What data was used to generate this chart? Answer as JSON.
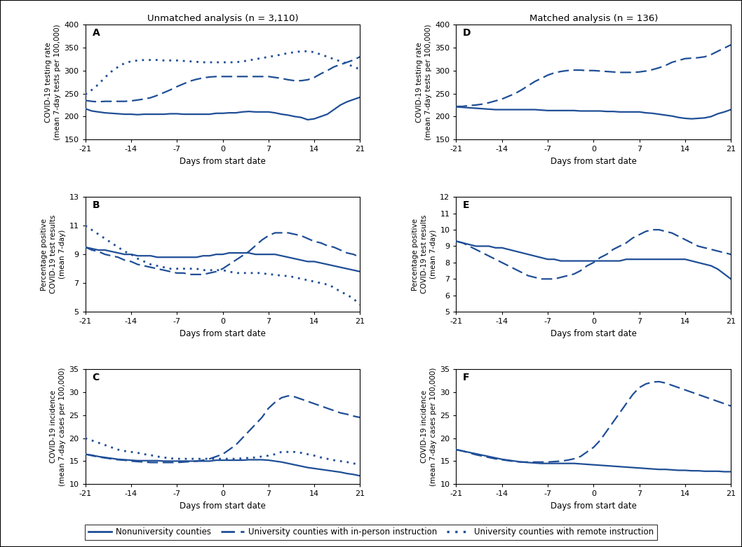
{
  "title_left": "Unmatched analysis (n = 3,110)",
  "title_right": "Matched analysis (n = 136)",
  "color": "#1F4E96",
  "x": [
    -21,
    -20,
    -19,
    -18,
    -17,
    -16,
    -15,
    -14,
    -13,
    -12,
    -11,
    -10,
    -9,
    -8,
    -7,
    -6,
    -5,
    -4,
    -3,
    -2,
    -1,
    0,
    1,
    2,
    3,
    4,
    5,
    6,
    7,
    8,
    9,
    10,
    11,
    12,
    13,
    14,
    15,
    16,
    17,
    18,
    19,
    20,
    21
  ],
  "panels": {
    "A": {
      "col_title": "Unmatched analysis (n = 3,110)",
      "ylabel": "COVID-19 testing rate\n(mean 7-day tests per 100,000)",
      "ylim": [
        150,
        400
      ],
      "yticks": [
        150,
        200,
        250,
        300,
        350,
        400
      ],
      "solid": [
        217,
        212,
        210,
        208,
        207,
        206,
        205,
        205,
        204,
        205,
        205,
        205,
        205,
        206,
        206,
        205,
        205,
        205,
        205,
        205,
        207,
        207,
        208,
        208,
        210,
        211,
        210,
        210,
        210,
        208,
        205,
        203,
        200,
        198,
        193,
        195,
        200,
        205,
        215,
        225,
        232,
        237,
        242
      ],
      "dashed": [
        235,
        233,
        232,
        233,
        233,
        233,
        233,
        234,
        236,
        238,
        241,
        246,
        252,
        258,
        265,
        271,
        277,
        281,
        284,
        286,
        287,
        287,
        287,
        287,
        287,
        287,
        287,
        287,
        287,
        285,
        283,
        280,
        278,
        278,
        280,
        285,
        293,
        300,
        308,
        313,
        318,
        323,
        330
      ],
      "dotted": [
        248,
        258,
        270,
        285,
        298,
        308,
        316,
        320,
        322,
        323,
        323,
        323,
        322,
        322,
        322,
        321,
        320,
        319,
        318,
        318,
        318,
        318,
        318,
        318,
        320,
        322,
        325,
        327,
        330,
        332,
        335,
        338,
        340,
        342,
        342,
        340,
        335,
        330,
        325,
        320,
        315,
        308,
        303
      ]
    },
    "B": {
      "col_title": null,
      "ylabel": "Percentage positive\nCOVID-19 test results\n(mean 7-day)",
      "ylim": [
        5,
        13
      ],
      "yticks": [
        5,
        7,
        9,
        11,
        13
      ],
      "solid": [
        9.5,
        9.4,
        9.3,
        9.3,
        9.2,
        9.1,
        9.0,
        9.0,
        8.9,
        8.9,
        8.9,
        8.8,
        8.8,
        8.8,
        8.8,
        8.8,
        8.8,
        8.8,
        8.9,
        8.9,
        9.0,
        9.0,
        9.1,
        9.1,
        9.1,
        9.1,
        9.0,
        9.0,
        9.0,
        9.0,
        8.9,
        8.8,
        8.7,
        8.6,
        8.5,
        8.5,
        8.4,
        8.3,
        8.2,
        8.1,
        8.0,
        7.9,
        7.8
      ],
      "dashed": [
        9.5,
        9.3,
        9.2,
        9.0,
        8.9,
        8.8,
        8.6,
        8.5,
        8.3,
        8.2,
        8.1,
        8.0,
        7.9,
        7.8,
        7.7,
        7.7,
        7.6,
        7.6,
        7.6,
        7.7,
        7.8,
        8.0,
        8.3,
        8.6,
        8.9,
        9.2,
        9.6,
        10.0,
        10.3,
        10.5,
        10.5,
        10.5,
        10.4,
        10.3,
        10.1,
        9.9,
        9.8,
        9.6,
        9.5,
        9.3,
        9.1,
        9.0,
        8.8
      ],
      "dotted": [
        11.0,
        10.7,
        10.4,
        10.1,
        9.8,
        9.5,
        9.2,
        9.0,
        8.7,
        8.5,
        8.3,
        8.2,
        8.1,
        8.0,
        8.0,
        8.0,
        8.0,
        8.0,
        7.9,
        7.9,
        7.9,
        7.9,
        7.8,
        7.7,
        7.7,
        7.7,
        7.7,
        7.7,
        7.6,
        7.6,
        7.5,
        7.5,
        7.4,
        7.3,
        7.2,
        7.1,
        7.0,
        6.9,
        6.7,
        6.4,
        6.2,
        5.9,
        5.5
      ]
    },
    "C": {
      "col_title": null,
      "ylabel": "COVID-19 incidence\n(mean 7-day cases per 100,000)",
      "ylim": [
        10,
        35
      ],
      "yticks": [
        10,
        15,
        20,
        25,
        30,
        35
      ],
      "solid": [
        16.5,
        16.3,
        16.0,
        15.8,
        15.6,
        15.4,
        15.3,
        15.2,
        15.1,
        15.1,
        15.1,
        15.1,
        15.0,
        15.0,
        15.0,
        15.0,
        15.0,
        15.0,
        15.0,
        15.0,
        15.2,
        15.2,
        15.2,
        15.2,
        15.2,
        15.3,
        15.3,
        15.3,
        15.2,
        15.0,
        14.8,
        14.5,
        14.2,
        13.9,
        13.6,
        13.4,
        13.2,
        13.0,
        12.8,
        12.6,
        12.3,
        12.1,
        11.8
      ],
      "dashed": [
        16.5,
        16.2,
        15.9,
        15.7,
        15.5,
        15.3,
        15.2,
        15.0,
        14.9,
        14.8,
        14.7,
        14.7,
        14.7,
        14.7,
        14.7,
        14.8,
        14.9,
        15.0,
        15.2,
        15.5,
        16.0,
        16.5,
        17.5,
        18.5,
        20.0,
        21.5,
        23.0,
        24.5,
        26.5,
        27.8,
        28.8,
        29.2,
        29.0,
        28.5,
        28.0,
        27.5,
        27.0,
        26.5,
        26.0,
        25.5,
        25.2,
        24.8,
        24.5
      ],
      "dotted": [
        20.0,
        19.5,
        19.0,
        18.5,
        18.0,
        17.5,
        17.2,
        17.0,
        16.8,
        16.5,
        16.3,
        16.0,
        15.8,
        15.6,
        15.5,
        15.5,
        15.5,
        15.5,
        15.5,
        15.5,
        15.5,
        15.5,
        15.5,
        15.5,
        15.6,
        15.7,
        15.8,
        16.0,
        16.2,
        16.5,
        17.0,
        17.0,
        17.0,
        16.8,
        16.5,
        16.2,
        15.8,
        15.5,
        15.2,
        15.0,
        14.8,
        14.5,
        14.2
      ]
    },
    "D": {
      "col_title": "Matched analysis (n = 136)",
      "ylabel": "COVID-19 testing rate\n(mean 7-day tests per 100,000)",
      "ylim": [
        150,
        400
      ],
      "yticks": [
        150,
        200,
        250,
        300,
        350,
        400
      ],
      "solid": [
        221,
        220,
        219,
        218,
        217,
        216,
        215,
        215,
        215,
        215,
        215,
        215,
        215,
        214,
        213,
        213,
        213,
        213,
        213,
        212,
        212,
        212,
        212,
        211,
        211,
        210,
        210,
        210,
        210,
        208,
        207,
        205,
        203,
        201,
        198,
        196,
        195,
        196,
        197,
        200,
        206,
        210,
        215
      ],
      "dashed": [
        222,
        222,
        224,
        225,
        227,
        230,
        234,
        238,
        244,
        250,
        258,
        267,
        276,
        283,
        290,
        295,
        298,
        300,
        301,
        301,
        300,
        300,
        299,
        298,
        297,
        296,
        296,
        296,
        297,
        299,
        302,
        306,
        311,
        318,
        322,
        326,
        327,
        328,
        330,
        335,
        342,
        349,
        356
      ],
      "dotted": null
    },
    "E": {
      "col_title": null,
      "ylabel": "Percentage positive\nCOVID-19 test results\n(mean 7-day)",
      "ylim": [
        5,
        12
      ],
      "yticks": [
        5,
        6,
        7,
        8,
        9,
        10,
        11,
        12
      ],
      "solid": [
        9.3,
        9.2,
        9.1,
        9.0,
        9.0,
        9.0,
        8.9,
        8.9,
        8.8,
        8.7,
        8.6,
        8.5,
        8.4,
        8.3,
        8.2,
        8.2,
        8.1,
        8.1,
        8.1,
        8.1,
        8.1,
        8.1,
        8.1,
        8.1,
        8.1,
        8.1,
        8.2,
        8.2,
        8.2,
        8.2,
        8.2,
        8.2,
        8.2,
        8.2,
        8.2,
        8.2,
        8.1,
        8.0,
        7.9,
        7.8,
        7.6,
        7.3,
        7.0
      ],
      "dashed": [
        9.3,
        9.2,
        9.0,
        8.8,
        8.6,
        8.4,
        8.2,
        8.0,
        7.8,
        7.6,
        7.4,
        7.2,
        7.1,
        7.0,
        7.0,
        7.0,
        7.1,
        7.2,
        7.3,
        7.5,
        7.8,
        8.0,
        8.3,
        8.5,
        8.8,
        9.0,
        9.2,
        9.5,
        9.7,
        9.9,
        10.0,
        10.0,
        9.9,
        9.8,
        9.6,
        9.4,
        9.2,
        9.0,
        8.9,
        8.8,
        8.7,
        8.6,
        8.5
      ],
      "dotted": null
    },
    "F": {
      "col_title": null,
      "ylabel": "COVID-19 incidence\n(mean 7-day cases per 100,000)",
      "ylim": [
        10,
        35
      ],
      "yticks": [
        10,
        15,
        20,
        25,
        30,
        35
      ],
      "solid": [
        17.5,
        17.2,
        16.9,
        16.6,
        16.3,
        16.0,
        15.7,
        15.4,
        15.2,
        15.0,
        14.8,
        14.7,
        14.6,
        14.5,
        14.5,
        14.5,
        14.5,
        14.5,
        14.5,
        14.4,
        14.3,
        14.2,
        14.1,
        14.0,
        13.9,
        13.8,
        13.7,
        13.6,
        13.5,
        13.4,
        13.3,
        13.2,
        13.2,
        13.1,
        13.0,
        13.0,
        12.9,
        12.9,
        12.8,
        12.8,
        12.8,
        12.7,
        12.7
      ],
      "dashed": [
        17.5,
        17.2,
        16.8,
        16.4,
        16.1,
        15.8,
        15.5,
        15.3,
        15.1,
        14.9,
        14.8,
        14.8,
        14.8,
        14.8,
        14.8,
        14.9,
        15.0,
        15.2,
        15.5,
        16.0,
        17.0,
        18.0,
        19.5,
        21.5,
        23.5,
        25.5,
        27.5,
        29.5,
        31.0,
        31.8,
        32.2,
        32.3,
        32.0,
        31.5,
        31.0,
        30.5,
        30.0,
        29.5,
        29.0,
        28.5,
        28.0,
        27.5,
        27.0
      ],
      "dotted": null
    }
  },
  "legend": {
    "solid_label": "Nonuniversity counties",
    "dashed_label": "University counties with in-person instruction",
    "dotted_label": "University counties with remote instruction"
  }
}
